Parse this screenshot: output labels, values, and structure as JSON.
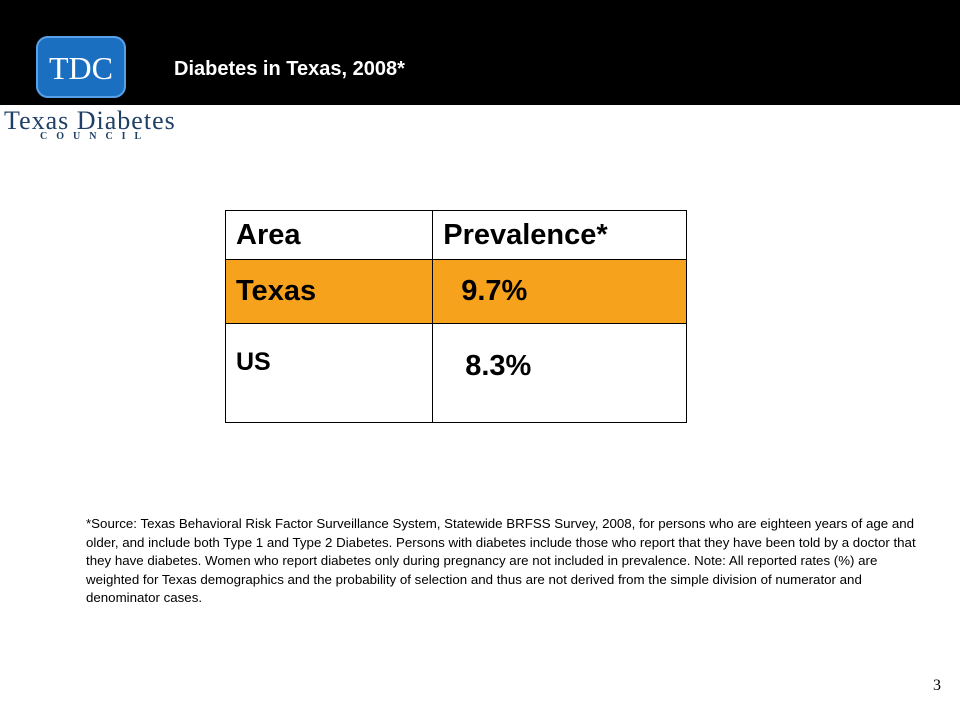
{
  "header": {
    "title": "Diabetes in Texas, 2008*"
  },
  "logo": {
    "monogram": "TDC",
    "name": "Texas Diabetes",
    "subname": "COUNCIL",
    "accent_color": "#1a6fc0"
  },
  "table": {
    "headers": [
      "Area",
      "Prevalence*"
    ],
    "rows": [
      {
        "area": "Texas",
        "prevalence": "9.7%",
        "highlight_color": "#f6a21c"
      },
      {
        "area": "US",
        "prevalence": "8.3%"
      }
    ]
  },
  "footnote": "*Source:  Texas Behavioral Risk Factor Surveillance System, Statewide BRFSS Survey, 2008, for persons who are eighteen years of age and older, and include both Type 1 and Type 2 Diabetes.  Persons with diabetes include those who report that they have been told by a doctor that they have diabetes.  Women who report diabetes only during pregnancy are not included in prevalence.  Note:  All reported rates (%) are weighted for Texas demographics and the probability of selection and thus are not derived from the simple division of numerator and denominator cases.",
  "page_number": "3"
}
